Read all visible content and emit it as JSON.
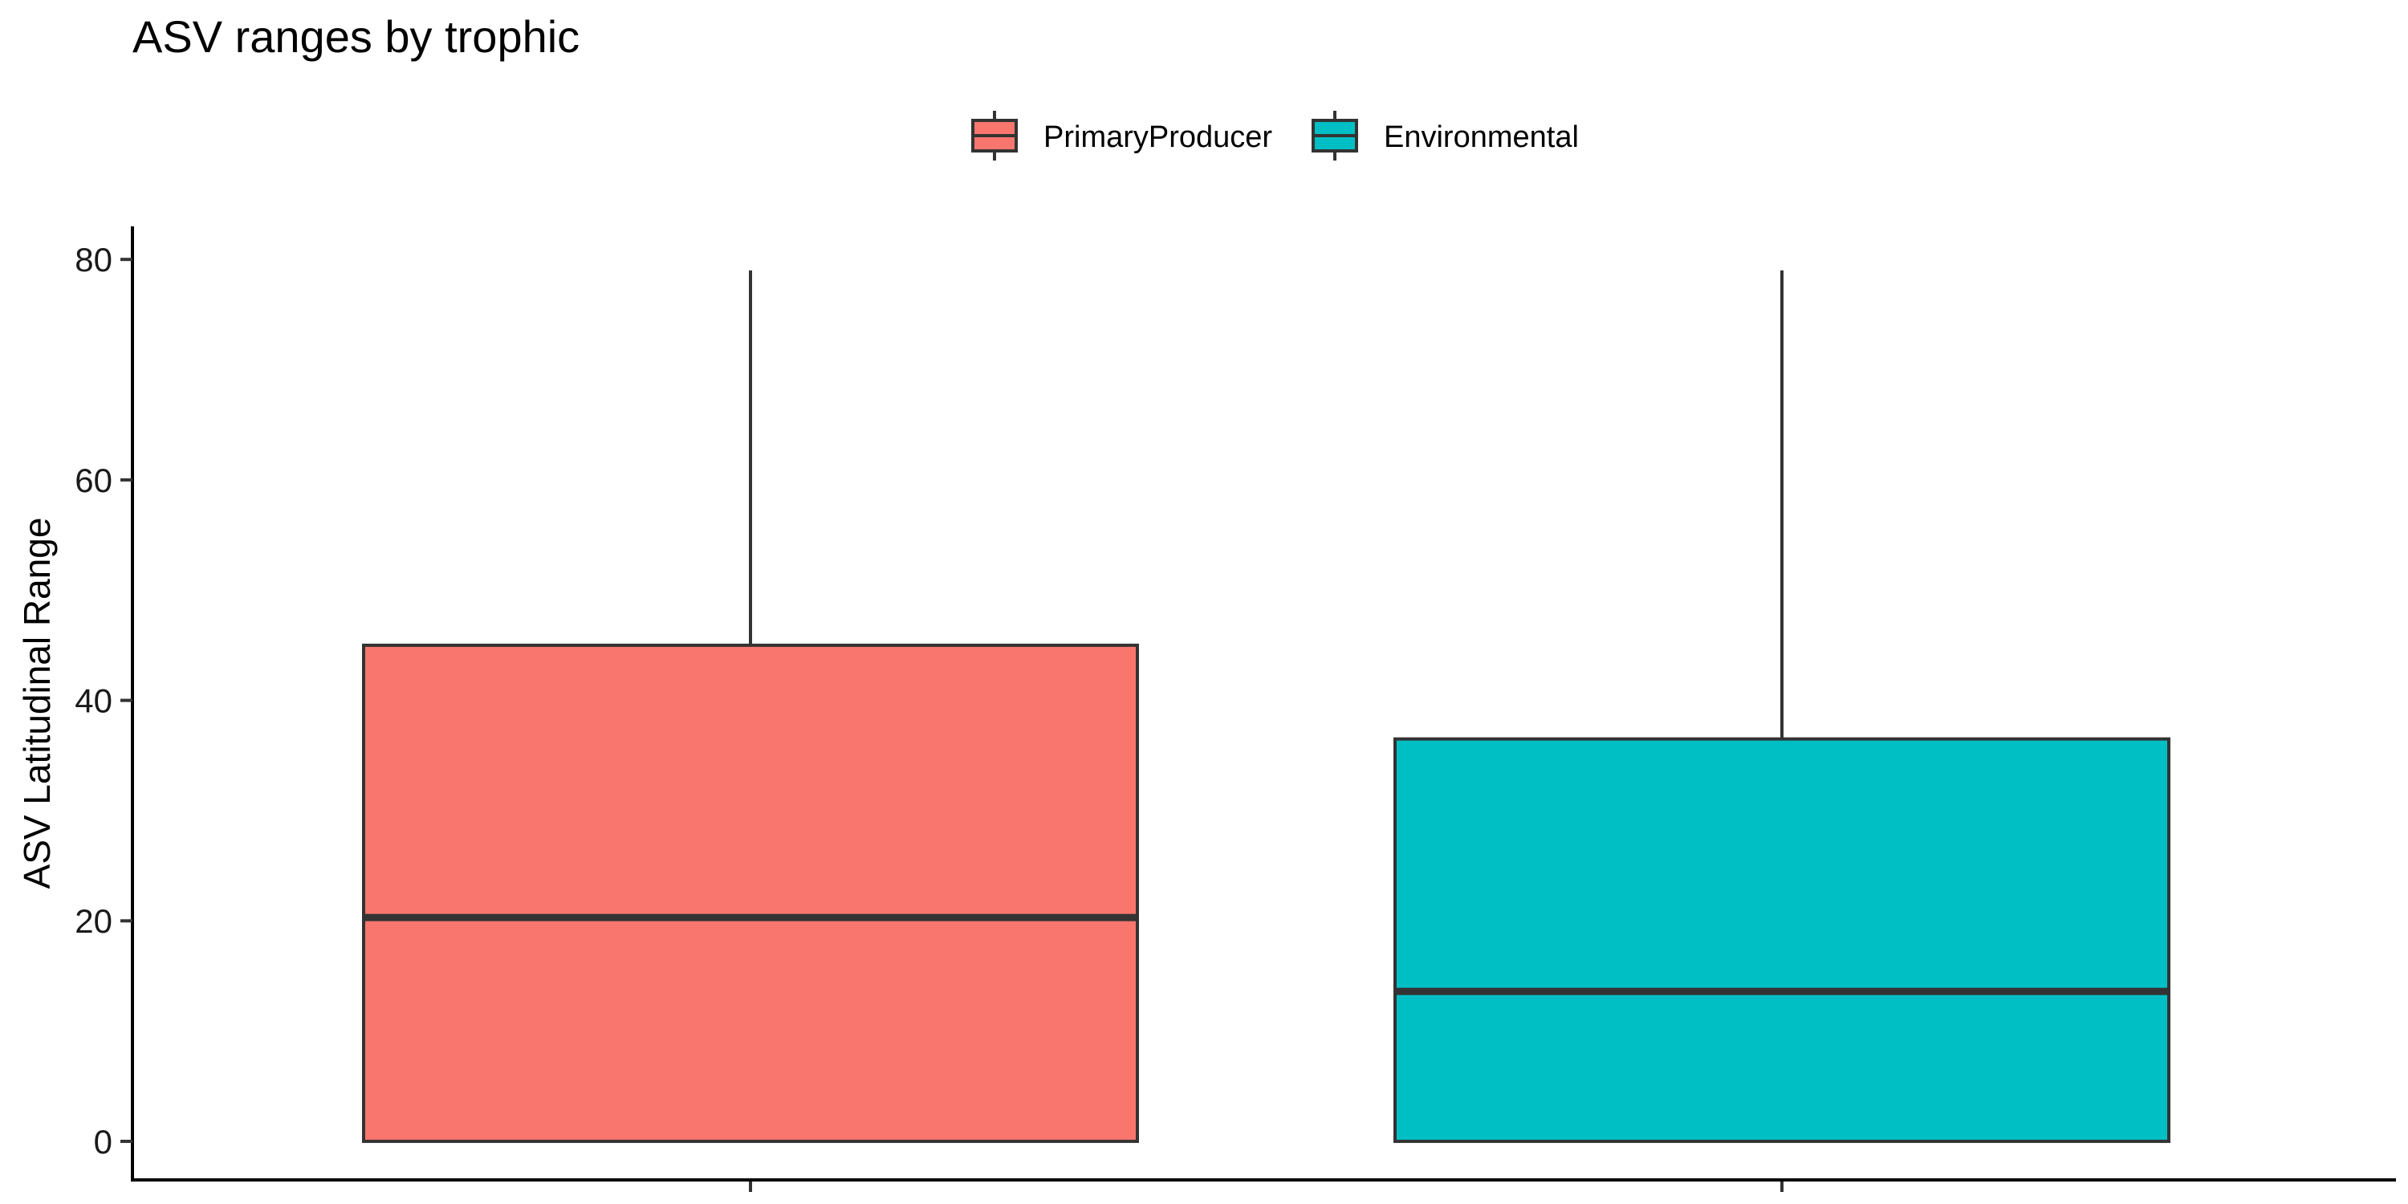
{
  "chart_data": {
    "type": "box",
    "title": "ASV ranges by trophic",
    "xlabel": "",
    "ylabel": "ASV Latitudinal Range",
    "ylim": [
      -3.5,
      83
    ],
    "yticks": [
      0,
      20,
      40,
      60,
      80
    ],
    "grid": false,
    "legend": "top",
    "series": [
      {
        "name": "PrimaryProducer",
        "color": "#F8766D",
        "min": 0,
        "q1": 0,
        "median": 20.3,
        "q3": 45.0,
        "max": 79.0
      },
      {
        "name": "Environmental",
        "color": "#00BFC4",
        "min": 0,
        "q1": 0,
        "median": 13.6,
        "q3": 36.5,
        "max": 79.0
      }
    ]
  }
}
